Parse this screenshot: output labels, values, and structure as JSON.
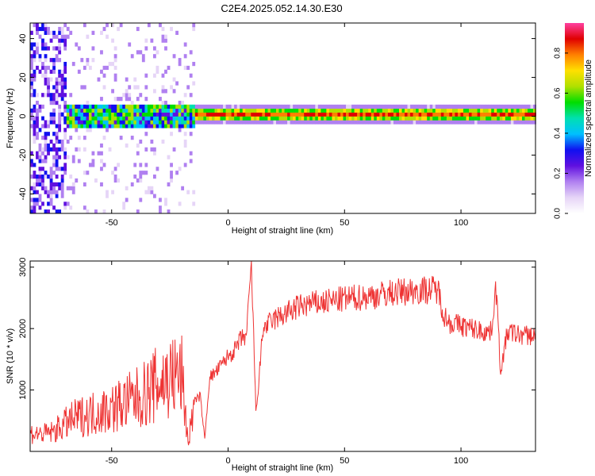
{
  "figure_title": "C2E4.2025.052.14.30.E30",
  "chart_data": [
    {
      "type": "heatmap",
      "title": "C2E4.2025.052.14.30.E30",
      "xlabel": "Height of straight line (km)",
      "ylabel": "Frequency (Hz)",
      "xlim": [
        -85,
        132
      ],
      "ylim": [
        -50,
        48
      ],
      "xticks": [
        -50,
        0,
        50,
        100
      ],
      "yticks": [
        -40,
        -20,
        0,
        20,
        40
      ],
      "colorbar": {
        "label": "Normalized spectral amplitude",
        "range": [
          0,
          0.95
        ],
        "ticks": [
          0.0,
          0.2,
          0.4,
          0.6,
          0.8
        ],
        "tick_labels": [
          "0.0",
          "0.2",
          "0.4",
          "0.6",
          "0.8"
        ],
        "colormap": [
          "#ffffff",
          "#e6d5f7",
          "#b080f0",
          "#6010e0",
          "#1010f0",
          "#00c0ff",
          "#00e0b0",
          "#00dd00",
          "#b0e000",
          "#ffe000",
          "#ff8000",
          "#e00000",
          "#ff40a0"
        ]
      },
      "description": "Dense signal band centered near 0 Hz across the full height range; broadband noise below about -15 km; strongest (red) amplitudes near 0 Hz between about -15 km and 115 km"
    },
    {
      "type": "line",
      "xlabel": "Height of straight line (km)",
      "ylabel": "SNR (10 * v/v)",
      "xlim": [
        -85,
        132
      ],
      "ylim": [
        0,
        3100
      ],
      "xticks": [
        -50,
        0,
        50,
        100
      ],
      "yticks": [
        1000,
        2000,
        3000
      ],
      "series": [
        {
          "color": "#ee3333",
          "x": [
            -85,
            -80,
            -75,
            -70,
            -65,
            -60,
            -55,
            -50,
            -45,
            -40,
            -35,
            -30,
            -25,
            -20,
            -17,
            -15,
            -12,
            -10,
            -8,
            -5,
            -2,
            0,
            3,
            5,
            8,
            10,
            12,
            15,
            20,
            25,
            30,
            35,
            40,
            45,
            50,
            55,
            60,
            65,
            70,
            75,
            80,
            85,
            90,
            93,
            95,
            100,
            105,
            110,
            113,
            115,
            117,
            120,
            125,
            132
          ],
          "y": [
            300,
            280,
            320,
            450,
            550,
            600,
            650,
            700,
            780,
            850,
            950,
            1100,
            1200,
            1250,
            100,
            800,
            900,
            200,
            1200,
            1300,
            1450,
            1550,
            1650,
            1800,
            1900,
            3050,
            600,
            2000,
            2150,
            2250,
            2350,
            2400,
            2420,
            2450,
            2480,
            2500,
            2520,
            2550,
            2580,
            2600,
            2620,
            2630,
            2640,
            2200,
            2100,
            2050,
            2000,
            1950,
            1950,
            2700,
            1300,
            1950,
            1900,
            1880
          ]
        }
      ]
    }
  ]
}
